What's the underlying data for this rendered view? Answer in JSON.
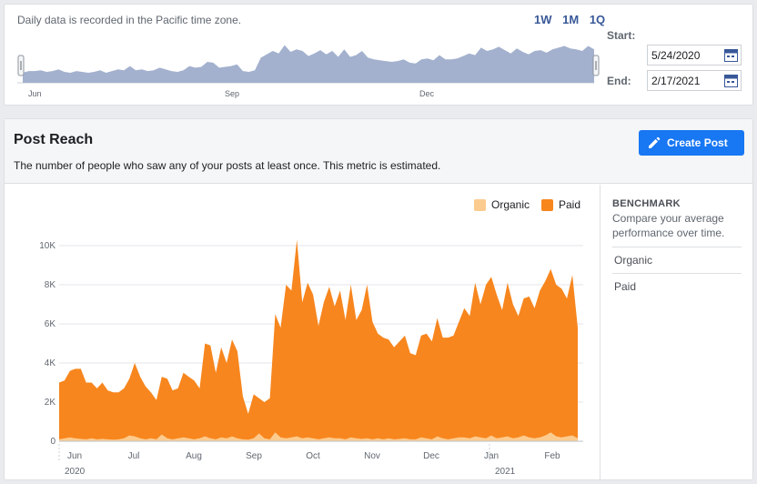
{
  "top": {
    "timezone_note": "Daily data is recorded in the Pacific time zone.",
    "range_links": [
      "1W",
      "1M",
      "1Q"
    ],
    "nav_axis_labels": [
      "Jun",
      "Sep",
      "Dec"
    ],
    "start_label": "Start:",
    "start_value": "5/24/2020",
    "end_label": "End:",
    "end_value": "2/17/2021"
  },
  "main": {
    "title": "Post Reach",
    "description": "The number of people who saw any of your posts at least once. This metric is estimated.",
    "create_button": "Create Post"
  },
  "sidebar": {
    "benchmark_title": "BENCHMARK",
    "benchmark_desc": "Compare your average performance over time.",
    "items": [
      "Organic",
      "Paid"
    ]
  },
  "colors": {
    "paid": "#f7861e",
    "organic": "#fccb8f",
    "nav_fill": "#a3b1ce",
    "accent": "#1877f2",
    "link": "#385898"
  },
  "chart_data": {
    "type": "area",
    "legend": [
      "Organic",
      "Paid"
    ],
    "legend_position": "top-right",
    "yticks": [
      "0",
      "2K",
      "4K",
      "6K",
      "8K",
      "10K"
    ],
    "ylim": [
      0,
      10000
    ],
    "month_labels": [
      "Jun",
      "Jul",
      "Aug",
      "Sep",
      "Oct",
      "Nov",
      "Dec",
      "Jan",
      "Feb"
    ],
    "year_labels": [
      "2020",
      "2021"
    ],
    "series": [
      {
        "name": "Paid",
        "values": [
          3000,
          3100,
          3600,
          3700,
          3700,
          3000,
          3000,
          2700,
          3000,
          2600,
          2500,
          2500,
          2700,
          3200,
          4000,
          3300,
          2800,
          2500,
          2100,
          3300,
          3200,
          2600,
          2700,
          3500,
          3300,
          3100,
          2700,
          5000,
          4900,
          3500,
          4800,
          4000,
          5200,
          4600,
          2300,
          1400,
          2400,
          2200,
          2000,
          2200,
          6500,
          5800,
          8000,
          7700,
          10300,
          7100,
          8100,
          7500,
          5900,
          7100,
          7900,
          6900,
          7700,
          6200,
          8000,
          6200,
          6700,
          8000,
          6100,
          5500,
          5300,
          5200,
          4800,
          5100,
          5400,
          4500,
          4400,
          5400,
          5500,
          5100,
          6300,
          5300,
          5300,
          5400,
          6100,
          6800,
          6400,
          8100,
          7000,
          8000,
          8400,
          7500,
          6700,
          8100,
          7000,
          6400,
          7300,
          7400,
          6800,
          7700,
          8200,
          8800,
          8000,
          7800,
          7300,
          8500,
          5800
        ]
      },
      {
        "name": "Organic",
        "values": [
          100,
          150,
          200,
          150,
          120,
          100,
          150,
          100,
          120,
          100,
          80,
          100,
          150,
          300,
          250,
          150,
          100,
          150,
          100,
          350,
          150,
          100,
          150,
          200,
          150,
          100,
          150,
          250,
          150,
          100,
          200,
          150,
          250,
          150,
          100,
          80,
          150,
          400,
          150,
          100,
          450,
          200,
          150,
          200,
          250,
          150,
          200,
          150,
          100,
          150,
          200,
          150,
          150,
          100,
          200,
          150,
          120,
          150,
          100,
          150,
          100,
          150,
          100,
          120,
          150,
          100,
          100,
          200,
          150,
          100,
          250,
          150,
          100,
          150,
          200,
          200,
          150,
          250,
          200,
          150,
          300,
          150,
          200,
          250,
          150,
          200,
          300,
          200,
          150,
          200,
          300,
          450,
          250,
          200,
          250,
          300,
          150
        ]
      }
    ]
  },
  "nav_chart_data": {
    "type": "area",
    "values": [
      12,
      14,
      14,
      15,
      13,
      14,
      16,
      13,
      12,
      14,
      13,
      12,
      13,
      15,
      12,
      14,
      16,
      15,
      20,
      15,
      16,
      14,
      15,
      18,
      16,
      14,
      13,
      15,
      20,
      18,
      19,
      25,
      24,
      18,
      19,
      20,
      22,
      14,
      13,
      15,
      30,
      34,
      38,
      35,
      45,
      37,
      40,
      38,
      32,
      35,
      39,
      34,
      38,
      31,
      40,
      31,
      33,
      38,
      30,
      28,
      27,
      26,
      25,
      26,
      28,
      24,
      23,
      28,
      29,
      27,
      33,
      28,
      28,
      29,
      32,
      35,
      33,
      42,
      38,
      40,
      43,
      39,
      35,
      41,
      37,
      34,
      38,
      39,
      36,
      40,
      42,
      44,
      41,
      40,
      38,
      44,
      40
    ]
  }
}
